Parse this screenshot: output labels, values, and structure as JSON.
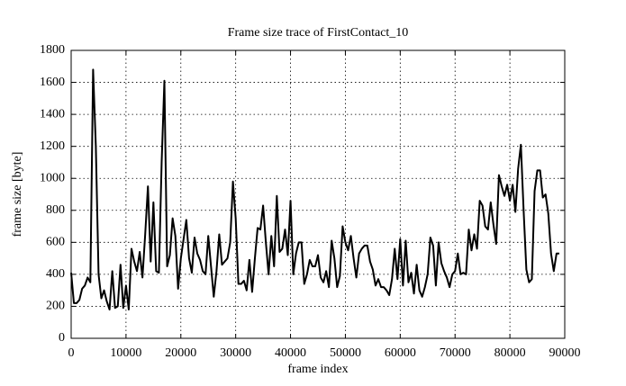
{
  "chart_data": {
    "type": "line",
    "title": "Frame size trace of FirstContact_10",
    "x_label": "frame index",
    "y_label": "frame size [byte]",
    "x": [
      0,
      500,
      1000,
      1500,
      2000,
      2500,
      3000,
      3500,
      4000,
      4500,
      5000,
      5500,
      6000,
      6500,
      7000,
      7500,
      8000,
      8500,
      9000,
      9500,
      10000,
      10500,
      11000,
      11500,
      12000,
      12500,
      13000,
      13500,
      14000,
      14500,
      15000,
      15500,
      16000,
      16500,
      17000,
      17500,
      18000,
      18500,
      19000,
      19500,
      20000,
      20500,
      21000,
      21500,
      22000,
      22500,
      23000,
      23500,
      24000,
      24500,
      25000,
      25500,
      26000,
      26500,
      27000,
      27500,
      28000,
      28500,
      29000,
      29500,
      30000,
      30500,
      31000,
      31500,
      32000,
      32500,
      33000,
      33500,
      34000,
      34500,
      35000,
      35500,
      36000,
      36500,
      37000,
      37500,
      38000,
      38500,
      39000,
      39500,
      40000,
      40500,
      41000,
      41500,
      42000,
      42500,
      43000,
      43500,
      44000,
      44500,
      45000,
      45500,
      46000,
      46500,
      47000,
      47500,
      48000,
      48500,
      49000,
      49500,
      50000,
      50500,
      51000,
      51500,
      52000,
      52500,
      53000,
      53500,
      54000,
      54500,
      55000,
      55500,
      56000,
      56500,
      57000,
      57500,
      58000,
      58500,
      59000,
      59500,
      60000,
      60500,
      61000,
      61500,
      62000,
      62500,
      63000,
      63500,
      64000,
      64500,
      65000,
      65500,
      66000,
      66500,
      67000,
      67500,
      68000,
      68500,
      69000,
      69500,
      70000,
      70500,
      71000,
      71500,
      72000,
      72500,
      73000,
      73500,
      74000,
      74500,
      75000,
      75500,
      76000,
      76500,
      77000,
      77500,
      78000,
      78500,
      79000,
      79500,
      80000,
      80500,
      81000,
      81500,
      82000,
      82500,
      83000,
      83500,
      84000,
      84500,
      85000,
      85500,
      86000,
      86500,
      87000,
      87500,
      88000,
      88500,
      89000
    ],
    "values": [
      410,
      220,
      220,
      240,
      310,
      330,
      380,
      350,
      1680,
      1200,
      400,
      250,
      300,
      230,
      180,
      420,
      190,
      200,
      460,
      190,
      330,
      180,
      560,
      480,
      420,
      540,
      380,
      650,
      950,
      480,
      850,
      420,
      410,
      1100,
      1610,
      450,
      520,
      750,
      640,
      310,
      500,
      620,
      740,
      500,
      410,
      630,
      530,
      490,
      420,
      400,
      640,
      450,
      260,
      420,
      650,
      460,
      480,
      500,
      600,
      980,
      750,
      340,
      340,
      360,
      300,
      490,
      290,
      500,
      690,
      680,
      830,
      600,
      400,
      640,
      450,
      890,
      540,
      560,
      680,
      520,
      860,
      400,
      530,
      600,
      600,
      340,
      400,
      490,
      450,
      450,
      520,
      380,
      350,
      420,
      320,
      610,
      500,
      320,
      390,
      700,
      600,
      550,
      640,
      500,
      380,
      530,
      560,
      580,
      580,
      480,
      430,
      330,
      370,
      320,
      320,
      300,
      270,
      370,
      560,
      370,
      620,
      330,
      610,
      350,
      410,
      280,
      460,
      300,
      260,
      320,
      400,
      630,
      580,
      330,
      600,
      470,
      420,
      380,
      320,
      400,
      420,
      530,
      400,
      410,
      400,
      680,
      550,
      650,
      560,
      860,
      830,
      700,
      680,
      850,
      710,
      590,
      1020,
      950,
      890,
      960,
      860,
      960,
      790,
      1060,
      1210,
      800,
      430,
      350,
      370,
      920,
      1050,
      1050,
      880,
      900,
      780,
      530,
      420,
      530,
      530
    ],
    "color": "#000000",
    "xlim": [
      0,
      90000
    ],
    "xticks": [
      0,
      10000,
      20000,
      30000,
      40000,
      50000,
      60000,
      70000,
      80000,
      90000
    ],
    "ylim": [
      0,
      1800
    ],
    "yticks": [
      0,
      200,
      400,
      600,
      800,
      1000,
      1200,
      1400,
      1600,
      1800
    ],
    "grid": true
  }
}
